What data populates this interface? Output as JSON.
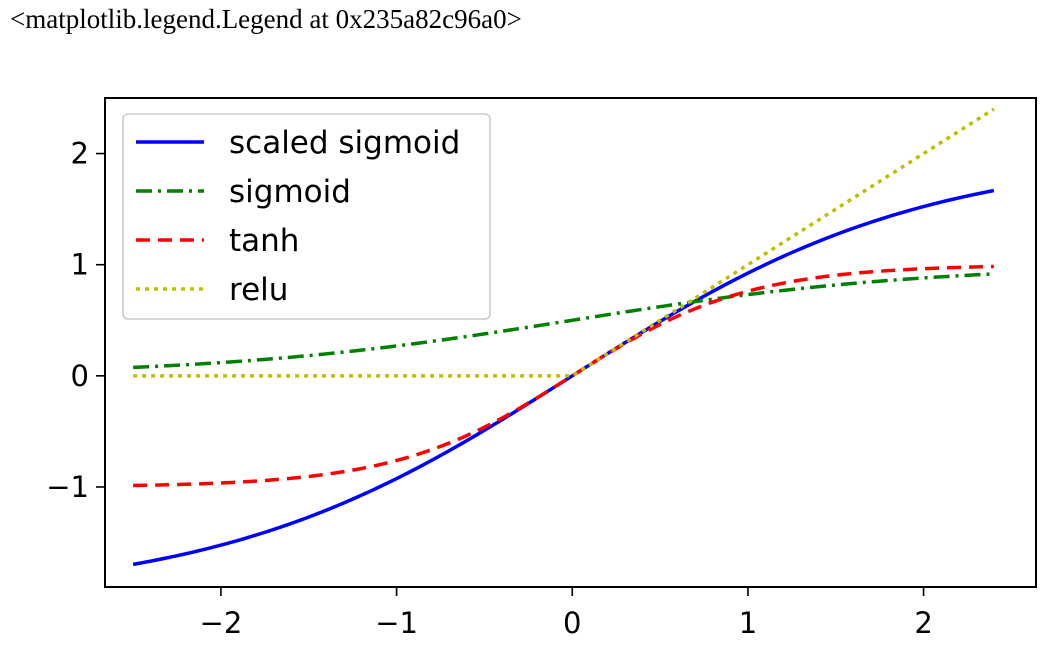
{
  "output_line": "<matplotlib.legend.Legend at 0x235a82c96a0>",
  "chart_data": {
    "type": "line",
    "title": "",
    "xlabel": "",
    "ylabel": "",
    "xlim": [
      -2.66,
      2.64
    ],
    "ylim": [
      -1.9,
      2.5
    ],
    "x_ticks": [
      -2,
      -1,
      0,
      1,
      2
    ],
    "x_tick_labels": [
      "−2",
      "−1",
      "0",
      "1",
      "2"
    ],
    "y_ticks": [
      -1,
      0,
      1,
      2
    ],
    "y_tick_labels": [
      "−1",
      "0",
      "1",
      "2"
    ],
    "grid": false,
    "legend_position": "upper-left",
    "x_range": [
      -2.5,
      2.4
    ],
    "series": [
      {
        "name": "scaled sigmoid",
        "function": "4*sigmoid(x)-2",
        "color": "#0000ff",
        "style": "solid"
      },
      {
        "name": "sigmoid",
        "function": "sigmoid(x)",
        "color": "#008000",
        "style": "dashdot"
      },
      {
        "name": "tanh",
        "function": "tanh(x)",
        "color": "#ff0000",
        "style": "dashed"
      },
      {
        "name": "relu",
        "function": "max(0,x)",
        "color": "#bfbf00",
        "style": "dotted"
      }
    ]
  }
}
